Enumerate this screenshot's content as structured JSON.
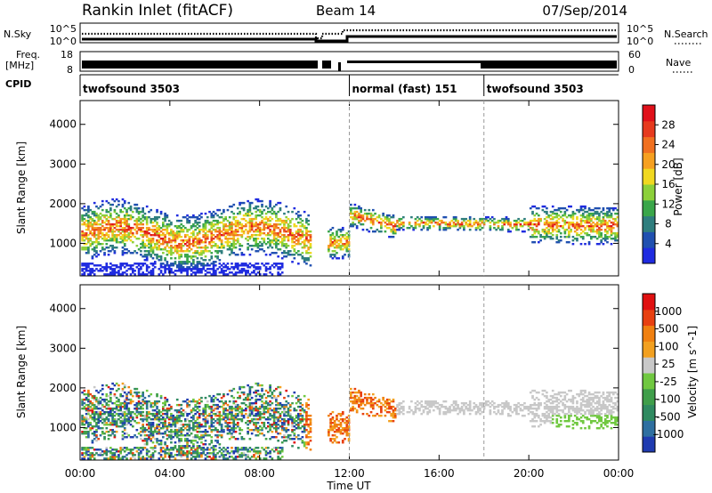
{
  "header": {
    "station": "Rankin Inlet (fitACF)",
    "beam": "Beam 14",
    "date": "07/Sep/2014"
  },
  "status_panel": {
    "nsky_label": "N.Sky",
    "nsky_ticks": [
      "10^5",
      "10^0"
    ],
    "nsearch_label": "N.Search",
    "nsearch_ticks": [
      "10^5",
      "10^0"
    ],
    "freq_label": "Freq.",
    "freq_unit": "[MHz]",
    "freq_ticks": [
      "18",
      "8"
    ],
    "nave_label": "Nave",
    "nave_ticks": [
      "60",
      "0"
    ],
    "cpid_label": "CPID",
    "cpid_segments": [
      {
        "label": "twofsound 3503",
        "start": 0,
        "end": 12
      },
      {
        "label": "normal (fast) 151",
        "start": 12,
        "end": 18
      },
      {
        "label": "twofsound 3503",
        "start": 18,
        "end": 24
      }
    ]
  },
  "chart_data": [
    {
      "type": "heatmap",
      "title": "",
      "xlabel": "Time UT",
      "ylabel": "Slant Range [km]",
      "x_ticks": [
        "00:00",
        "04:00",
        "08:00",
        "12:00",
        "16:00",
        "20:00",
        "00:00"
      ],
      "xlim": [
        0,
        24
      ],
      "y_ticks": [
        1000,
        2000,
        3000,
        4000
      ],
      "ylim": [
        180,
        4600
      ],
      "colorbar": {
        "label": "Power [dB]",
        "ticks": [
          "28",
          "24",
          "20",
          "16",
          "12",
          "8",
          "4"
        ],
        "colors": [
          "#1f2be0",
          "#2050b0",
          "#2f7e7e",
          "#3aa64a",
          "#8cd03a",
          "#f0d820",
          "#f6a020",
          "#f07020",
          "#e63a1e",
          "#e0101a"
        ]
      }
    },
    {
      "type": "heatmap",
      "title": "",
      "xlabel": "Time UT",
      "ylabel": "Slant Range [km]",
      "x_ticks": [
        "00:00",
        "04:00",
        "08:00",
        "12:00",
        "16:00",
        "20:00",
        "00:00"
      ],
      "xlim": [
        0,
        24
      ],
      "y_ticks": [
        1000,
        2000,
        3000,
        4000
      ],
      "ylim": [
        180,
        4600
      ],
      "colorbar": {
        "label": "Velocity [m s^-1]",
        "ticks": [
          "1000",
          "500",
          "100",
          "25",
          "-25",
          "-100",
          "-500",
          "-1000"
        ],
        "colors": [
          "#1f3bb0",
          "#2e6fa0",
          "#2f8a60",
          "#3f9e4a",
          "#70c840",
          "#c8c8c8",
          "#f2a020",
          "#f08010",
          "#e84010",
          "#e01010"
        ]
      }
    }
  ]
}
